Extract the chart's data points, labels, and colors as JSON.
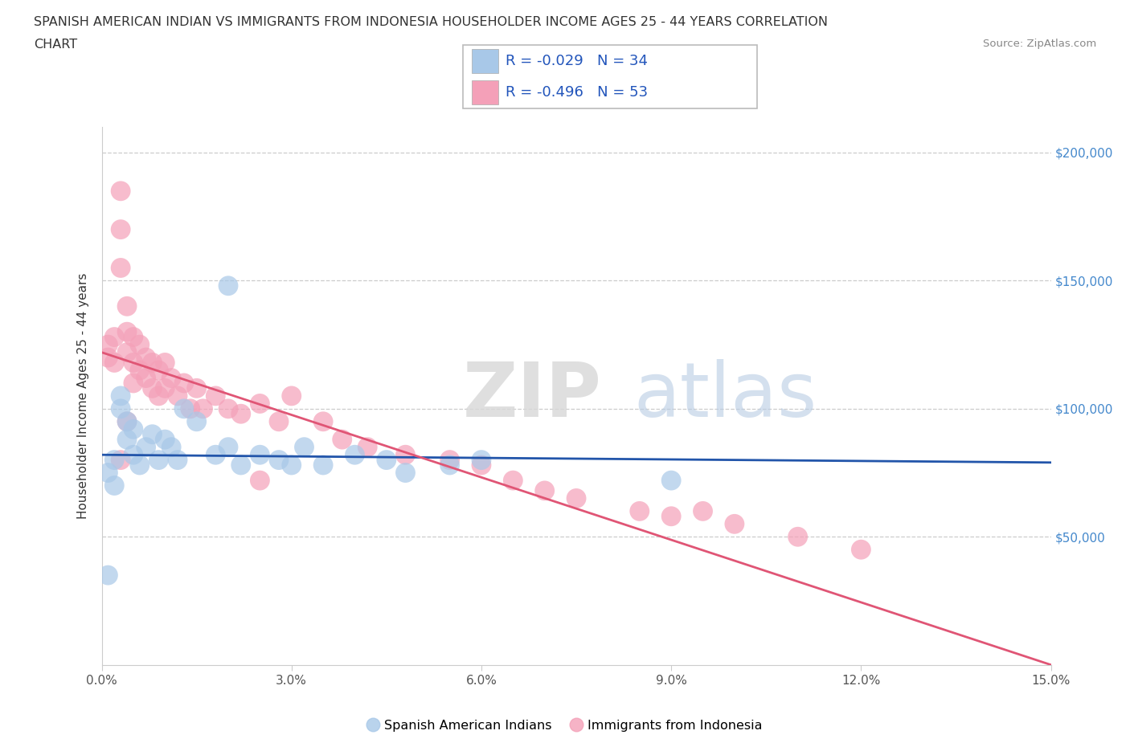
{
  "title_line1": "SPANISH AMERICAN INDIAN VS IMMIGRANTS FROM INDONESIA HOUSEHOLDER INCOME AGES 25 - 44 YEARS CORRELATION",
  "title_line2": "CHART",
  "source": "Source: ZipAtlas.com",
  "ylabel": "Householder Income Ages 25 - 44 years",
  "legend_label1": "Spanish American Indians",
  "legend_label2": "Immigrants from Indonesia",
  "R1": -0.029,
  "N1": 34,
  "R2": -0.496,
  "N2": 53,
  "blue_color": "#a8c8e8",
  "pink_color": "#f4a0b8",
  "blue_line_color": "#2255aa",
  "pink_line_color": "#e05575",
  "blue_x": [
    0.001,
    0.001,
    0.002,
    0.002,
    0.003,
    0.003,
    0.004,
    0.004,
    0.005,
    0.005,
    0.006,
    0.007,
    0.008,
    0.009,
    0.01,
    0.011,
    0.012,
    0.013,
    0.015,
    0.018,
    0.02,
    0.022,
    0.025,
    0.028,
    0.03,
    0.032,
    0.035,
    0.04,
    0.045,
    0.048,
    0.055,
    0.06,
    0.09,
    0.02
  ],
  "blue_y": [
    35000,
    75000,
    70000,
    80000,
    100000,
    105000,
    95000,
    88000,
    82000,
    92000,
    78000,
    85000,
    90000,
    80000,
    88000,
    85000,
    80000,
    100000,
    95000,
    82000,
    85000,
    78000,
    82000,
    80000,
    78000,
    85000,
    78000,
    82000,
    80000,
    75000,
    78000,
    80000,
    72000,
    148000
  ],
  "pink_x": [
    0.001,
    0.001,
    0.002,
    0.002,
    0.003,
    0.003,
    0.003,
    0.004,
    0.004,
    0.004,
    0.005,
    0.005,
    0.005,
    0.006,
    0.006,
    0.007,
    0.007,
    0.008,
    0.008,
    0.009,
    0.009,
    0.01,
    0.01,
    0.011,
    0.012,
    0.013,
    0.014,
    0.015,
    0.016,
    0.018,
    0.02,
    0.022,
    0.025,
    0.028,
    0.03,
    0.035,
    0.038,
    0.042,
    0.048,
    0.055,
    0.06,
    0.065,
    0.07,
    0.075,
    0.085,
    0.09,
    0.095,
    0.1,
    0.11,
    0.12,
    0.003,
    0.004,
    0.025
  ],
  "pink_y": [
    120000,
    125000,
    128000,
    118000,
    185000,
    170000,
    155000,
    140000,
    130000,
    122000,
    128000,
    118000,
    110000,
    125000,
    115000,
    120000,
    112000,
    118000,
    108000,
    115000,
    105000,
    118000,
    108000,
    112000,
    105000,
    110000,
    100000,
    108000,
    100000,
    105000,
    100000,
    98000,
    102000,
    95000,
    105000,
    95000,
    88000,
    85000,
    82000,
    80000,
    78000,
    72000,
    68000,
    65000,
    60000,
    58000,
    60000,
    55000,
    50000,
    45000,
    80000,
    95000,
    72000
  ],
  "xlim": [
    0.0,
    0.15
  ],
  "ylim": [
    0,
    210000
  ],
  "ytick_vals": [
    0,
    50000,
    100000,
    150000,
    200000
  ],
  "ytick_labels_right": [
    "",
    "$50,000",
    "$100,000",
    "$150,000",
    "$200,000"
  ],
  "xtick_vals": [
    0.0,
    0.03,
    0.06,
    0.09,
    0.12,
    0.15
  ],
  "xtick_labels": [
    "0.0%",
    "3.0%",
    "6.0%",
    "9.0%",
    "12.0%",
    "15.0%"
  ],
  "blue_trend_x": [
    0.0,
    0.15
  ],
  "blue_trend_y": [
    82000,
    79000
  ],
  "pink_trend_x": [
    0.0,
    0.15
  ],
  "pink_trend_y": [
    122000,
    0
  ],
  "watermark_zip": "ZIP",
  "watermark_atlas": "atlas",
  "bg_color": "#ffffff",
  "grid_color": "#cccccc",
  "title_fontsize": 11.5,
  "axis_label_fontsize": 11,
  "tick_fontsize": 11,
  "legend_fontsize": 13,
  "marker_size": 320
}
